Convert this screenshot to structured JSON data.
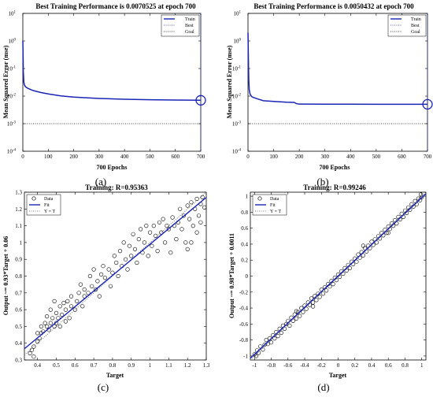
{
  "captions": [
    "(a)",
    "(b)",
    "(c)",
    "(d)"
  ],
  "colors": {
    "fit": "#1a24b5",
    "best": "#1a24b5",
    "goal": "#000000",
    "data": "#000000"
  },
  "chart_data": [
    {
      "type": "line",
      "title": "Best Training Performance is 0.0070525 at epoch 700",
      "xlabel": "700 Epochs",
      "ylabel": "Mean Squared Error  (mse)",
      "xlim": [
        0,
        700
      ],
      "ylim_log10": [
        -4,
        1
      ],
      "yscale": "log",
      "xticks": [
        "0",
        "100",
        "200",
        "300",
        "400",
        "500",
        "600",
        "700"
      ],
      "yticks": [
        "10^-4",
        "10^-3",
        "10^-2",
        "10^-1",
        "10^0",
        "10^1"
      ],
      "legend": [
        "Train",
        "Best",
        "Goal"
      ],
      "legend_position": "top-right",
      "goal": 0.001,
      "best_epoch": 700,
      "best_value": 0.0070525,
      "series": [
        {
          "name": "Train",
          "x": [
            0,
            1,
            2,
            4,
            6,
            10,
            20,
            40,
            70,
            100,
            150,
            200,
            300,
            400,
            500,
            600,
            700
          ],
          "y": [
            1.0,
            0.35,
            0.08,
            0.032,
            0.026,
            0.022,
            0.019,
            0.016,
            0.0135,
            0.012,
            0.0102,
            0.0092,
            0.0082,
            0.0077,
            0.0074,
            0.0072,
            0.0070525
          ]
        }
      ]
    },
    {
      "type": "line",
      "title": "Best Training Performance is 0.0050432 at epoch 700",
      "xlabel": "700 Epochs",
      "ylabel": "Mean Squared Error  (mse)",
      "xlim": [
        0,
        700
      ],
      "ylim_log10": [
        -4,
        1
      ],
      "yscale": "log",
      "xticks": [
        "0",
        "100",
        "200",
        "300",
        "400",
        "500",
        "600",
        "700"
      ],
      "yticks": [
        "10^-4",
        "10^-3",
        "10^-2",
        "10^-1",
        "10^0",
        "10^1"
      ],
      "legend": [
        "Train",
        "Best",
        "Goal"
      ],
      "legend_position": "top-right",
      "goal": 0.001,
      "best_epoch": 700,
      "best_value": 0.0050432,
      "series": [
        {
          "name": "Train",
          "x": [
            0,
            1,
            2,
            3,
            5,
            8,
            10,
            15,
            20,
            40,
            60,
            100,
            150,
            180,
            190,
            200,
            300,
            400,
            500,
            600,
            700
          ],
          "y": [
            2.0,
            0.6,
            0.12,
            0.04,
            0.017,
            0.012,
            0.011,
            0.0095,
            0.009,
            0.0078,
            0.0068,
            0.0064,
            0.006,
            0.0059,
            0.0053,
            0.00515,
            0.00511,
            0.00508,
            0.00506,
            0.00505,
            0.0050432
          ]
        }
      ]
    },
    {
      "type": "scatter",
      "title": "Training: R=0.95363",
      "xlabel": "Target",
      "ylabel": "Output ~= 0.93*Target + 0.06",
      "xlim": [
        0.33,
        1.3
      ],
      "ylim": [
        0.3,
        1.3
      ],
      "xticks": [
        "0.4",
        "0.5",
        "0.6",
        "0.7",
        "0.8",
        "0.9",
        "1",
        "1.1",
        "1.2",
        "1.3"
      ],
      "yticks": [
        "0.3",
        "0.4",
        "0.5",
        "0.6",
        "0.7",
        "0.8",
        "0.9",
        "1",
        "1.1",
        "1.2",
        "1.3"
      ],
      "legend": [
        "Data",
        "Fit",
        "Y = T"
      ],
      "legend_position": "top-left",
      "fit": {
        "slope": 0.93,
        "intercept": 0.06
      },
      "points": [
        [
          0.36,
          0.34
        ],
        [
          0.37,
          0.36
        ],
        [
          0.38,
          0.32
        ],
        [
          0.38,
          0.38
        ],
        [
          0.4,
          0.41
        ],
        [
          0.4,
          0.46
        ],
        [
          0.41,
          0.43
        ],
        [
          0.42,
          0.46
        ],
        [
          0.42,
          0.5
        ],
        [
          0.43,
          0.47
        ],
        [
          0.44,
          0.52
        ],
        [
          0.45,
          0.5
        ],
        [
          0.45,
          0.56
        ],
        [
          0.46,
          0.48
        ],
        [
          0.47,
          0.52
        ],
        [
          0.47,
          0.6
        ],
        [
          0.48,
          0.55
        ],
        [
          0.49,
          0.5
        ],
        [
          0.49,
          0.65
        ],
        [
          0.5,
          0.58
        ],
        [
          0.5,
          0.52
        ],
        [
          0.51,
          0.55
        ],
        [
          0.52,
          0.62
        ],
        [
          0.52,
          0.5
        ],
        [
          0.53,
          0.57
        ],
        [
          0.54,
          0.64
        ],
        [
          0.55,
          0.53
        ],
        [
          0.55,
          0.6
        ],
        [
          0.56,
          0.65
        ],
        [
          0.57,
          0.55
        ],
        [
          0.58,
          0.62
        ],
        [
          0.58,
          0.68
        ],
        [
          0.6,
          0.6
        ],
        [
          0.61,
          0.65
        ],
        [
          0.62,
          0.7
        ],
        [
          0.63,
          0.75
        ],
        [
          0.64,
          0.62
        ],
        [
          0.65,
          0.68
        ],
        [
          0.65,
          0.72
        ],
        [
          0.67,
          0.7
        ],
        [
          0.68,
          0.8
        ],
        [
          0.69,
          0.74
        ],
        [
          0.7,
          0.84
        ],
        [
          0.71,
          0.72
        ],
        [
          0.72,
          0.77
        ],
        [
          0.73,
          0.68
        ],
        [
          0.74,
          0.81
        ],
        [
          0.75,
          0.86
        ],
        [
          0.76,
          0.79
        ],
        [
          0.78,
          0.84
        ],
        [
          0.79,
          0.74
        ],
        [
          0.8,
          0.82
        ],
        [
          0.81,
          0.92
        ],
        [
          0.82,
          0.88
        ],
        [
          0.83,
          0.8
        ],
        [
          0.84,
          0.95
        ],
        [
          0.85,
          0.86
        ],
        [
          0.86,
          1.0
        ],
        [
          0.87,
          0.9
        ],
        [
          0.88,
          0.84
        ],
        [
          0.89,
          0.98
        ],
        [
          0.9,
          0.92
        ],
        [
          0.91,
          1.05
        ],
        [
          0.92,
          0.96
        ],
        [
          0.93,
          0.88
        ],
        [
          0.94,
          1.02
        ],
        [
          0.95,
          1.08
        ],
        [
          0.96,
          0.94
        ],
        [
          0.97,
          1.0
        ],
        [
          0.98,
          1.1
        ],
        [
          0.99,
          0.92
        ],
        [
          1.0,
          1.06
        ],
        [
          1.01,
          0.98
        ],
        [
          1.02,
          1.1
        ],
        [
          1.03,
          1.04
        ],
        [
          1.04,
          0.95
        ],
        [
          1.05,
          1.12
        ],
        [
          1.06,
          1.06
        ],
        [
          1.07,
          1.14
        ],
        [
          1.08,
          1.0
        ],
        [
          1.09,
          1.1
        ],
        [
          1.1,
          1.08
        ],
        [
          1.11,
          0.94
        ],
        [
          1.12,
          1.15
        ],
        [
          1.13,
          1.1
        ],
        [
          1.14,
          1.02
        ],
        [
          1.15,
          1.12
        ],
        [
          1.16,
          1.2
        ],
        [
          1.17,
          1.08
        ],
        [
          1.18,
          1.16
        ],
        [
          1.19,
          1.0
        ],
        [
          1.2,
          1.22
        ],
        [
          1.21,
          1.14
        ],
        [
          1.22,
          1.24
        ],
        [
          1.23,
          1.1
        ],
        [
          1.24,
          1.2
        ],
        [
          1.25,
          1.26
        ],
        [
          1.26,
          1.16
        ],
        [
          1.27,
          1.23
        ],
        [
          1.28,
          1.27
        ],
        [
          1.29,
          1.21
        ],
        [
          1.27,
          1.12
        ],
        [
          1.25,
          1.06
        ],
        [
          1.22,
          1.0
        ],
        [
          1.2,
          0.96
        ]
      ]
    },
    {
      "type": "scatter",
      "title": "Training: R=0.99246",
      "xlabel": "Target",
      "ylabel": "Output ~= 0.98*Target + 0.0011",
      "xlim": [
        -1.05,
        1.05
      ],
      "ylim": [
        -1.05,
        1.05
      ],
      "xticks": [
        "-1",
        "-0.8",
        "-0.6",
        "-0.4",
        "-0.2",
        "0",
        "0.2",
        "0.4",
        "0.6",
        "0.8",
        "1"
      ],
      "yticks": [
        "-1",
        "-0.8",
        "-0.6",
        "-0.4",
        "-0.2",
        "0",
        "0.2",
        "0.4",
        "0.6",
        "0.8",
        "1"
      ],
      "legend": [
        "Data",
        "Fit",
        "Y = T"
      ],
      "legend_position": "top-left",
      "fit": {
        "slope": 0.98,
        "intercept": 0.0011
      },
      "points": [
        [
          -1.0,
          -0.98
        ],
        [
          -0.98,
          -1.0
        ],
        [
          -0.97,
          -0.93
        ],
        [
          -0.95,
          -0.96
        ],
        [
          -0.93,
          -0.88
        ],
        [
          -0.9,
          -0.92
        ],
        [
          -0.88,
          -0.86
        ],
        [
          -0.86,
          -0.8
        ],
        [
          -0.84,
          -0.85
        ],
        [
          -0.82,
          -0.78
        ],
        [
          -0.8,
          -0.83
        ],
        [
          -0.78,
          -0.74
        ],
        [
          -0.76,
          -0.78
        ],
        [
          -0.74,
          -0.7
        ],
        [
          -0.72,
          -0.75
        ],
        [
          -0.7,
          -0.66
        ],
        [
          -0.68,
          -0.71
        ],
        [
          -0.66,
          -0.62
        ],
        [
          -0.64,
          -0.66
        ],
        [
          -0.62,
          -0.6
        ],
        [
          -0.6,
          -0.56
        ],
        [
          -0.58,
          -0.62
        ],
        [
          -0.56,
          -0.52
        ],
        [
          -0.54,
          -0.56
        ],
        [
          -0.52,
          -0.48
        ],
        [
          -0.5,
          -0.53
        ],
        [
          -0.48,
          -0.45
        ],
        [
          -0.46,
          -0.5
        ],
        [
          -0.44,
          -0.4
        ],
        [
          -0.42,
          -0.45
        ],
        [
          -0.4,
          -0.37
        ],
        [
          -0.38,
          -0.41
        ],
        [
          -0.36,
          -0.33
        ],
        [
          -0.34,
          -0.36
        ],
        [
          -0.32,
          -0.28
        ],
        [
          -0.3,
          -0.33
        ],
        [
          -0.28,
          -0.25
        ],
        [
          -0.26,
          -0.3
        ],
        [
          -0.24,
          -0.22
        ],
        [
          -0.22,
          -0.26
        ],
        [
          -0.2,
          -0.17
        ],
        [
          -0.18,
          -0.22
        ],
        [
          -0.16,
          -0.14
        ],
        [
          -0.14,
          -0.18
        ],
        [
          -0.12,
          -0.1
        ],
        [
          -0.1,
          -0.13
        ],
        [
          -0.08,
          -0.06
        ],
        [
          -0.06,
          -0.1
        ],
        [
          -0.04,
          -0.02
        ],
        [
          -0.02,
          -0.05
        ],
        [
          0.0,
          0.02
        ],
        [
          0.02,
          -0.01
        ],
        [
          0.04,
          0.06
        ],
        [
          0.06,
          0.03
        ],
        [
          0.08,
          0.1
        ],
        [
          0.1,
          0.07
        ],
        [
          0.12,
          0.14
        ],
        [
          0.14,
          0.1
        ],
        [
          0.16,
          0.18
        ],
        [
          0.18,
          0.15
        ],
        [
          0.2,
          0.22
        ],
        [
          0.22,
          0.18
        ],
        [
          0.24,
          0.27
        ],
        [
          0.26,
          0.23
        ],
        [
          0.28,
          0.3
        ],
        [
          0.3,
          0.26
        ],
        [
          0.32,
          0.35
        ],
        [
          0.34,
          0.31
        ],
        [
          0.36,
          0.38
        ],
        [
          0.38,
          0.35
        ],
        [
          0.4,
          0.43
        ],
        [
          0.42,
          0.39
        ],
        [
          0.44,
          0.46
        ],
        [
          0.46,
          0.42
        ],
        [
          0.48,
          0.5
        ],
        [
          0.5,
          0.47
        ],
        [
          0.52,
          0.54
        ],
        [
          0.54,
          0.51
        ],
        [
          0.56,
          0.58
        ],
        [
          0.58,
          0.54
        ],
        [
          0.6,
          0.62
        ],
        [
          0.62,
          0.59
        ],
        [
          0.64,
          0.66
        ],
        [
          0.66,
          0.63
        ],
        [
          0.68,
          0.7
        ],
        [
          0.7,
          0.66
        ],
        [
          0.72,
          0.74
        ],
        [
          0.74,
          0.71
        ],
        [
          0.76,
          0.78
        ],
        [
          0.78,
          0.74
        ],
        [
          0.8,
          0.82
        ],
        [
          0.82,
          0.79
        ],
        [
          0.84,
          0.86
        ],
        [
          0.86,
          0.83
        ],
        [
          0.88,
          0.9
        ],
        [
          0.9,
          0.87
        ],
        [
          0.92,
          0.94
        ],
        [
          0.94,
          0.9
        ],
        [
          0.96,
          0.97
        ],
        [
          0.98,
          0.95
        ],
        [
          1.0,
          0.99
        ],
        [
          0.99,
          1.02
        ],
        [
          -0.3,
          -0.38
        ],
        [
          0.3,
          0.38
        ],
        [
          -0.5,
          -0.44
        ],
        [
          0.6,
          0.54
        ]
      ]
    }
  ]
}
